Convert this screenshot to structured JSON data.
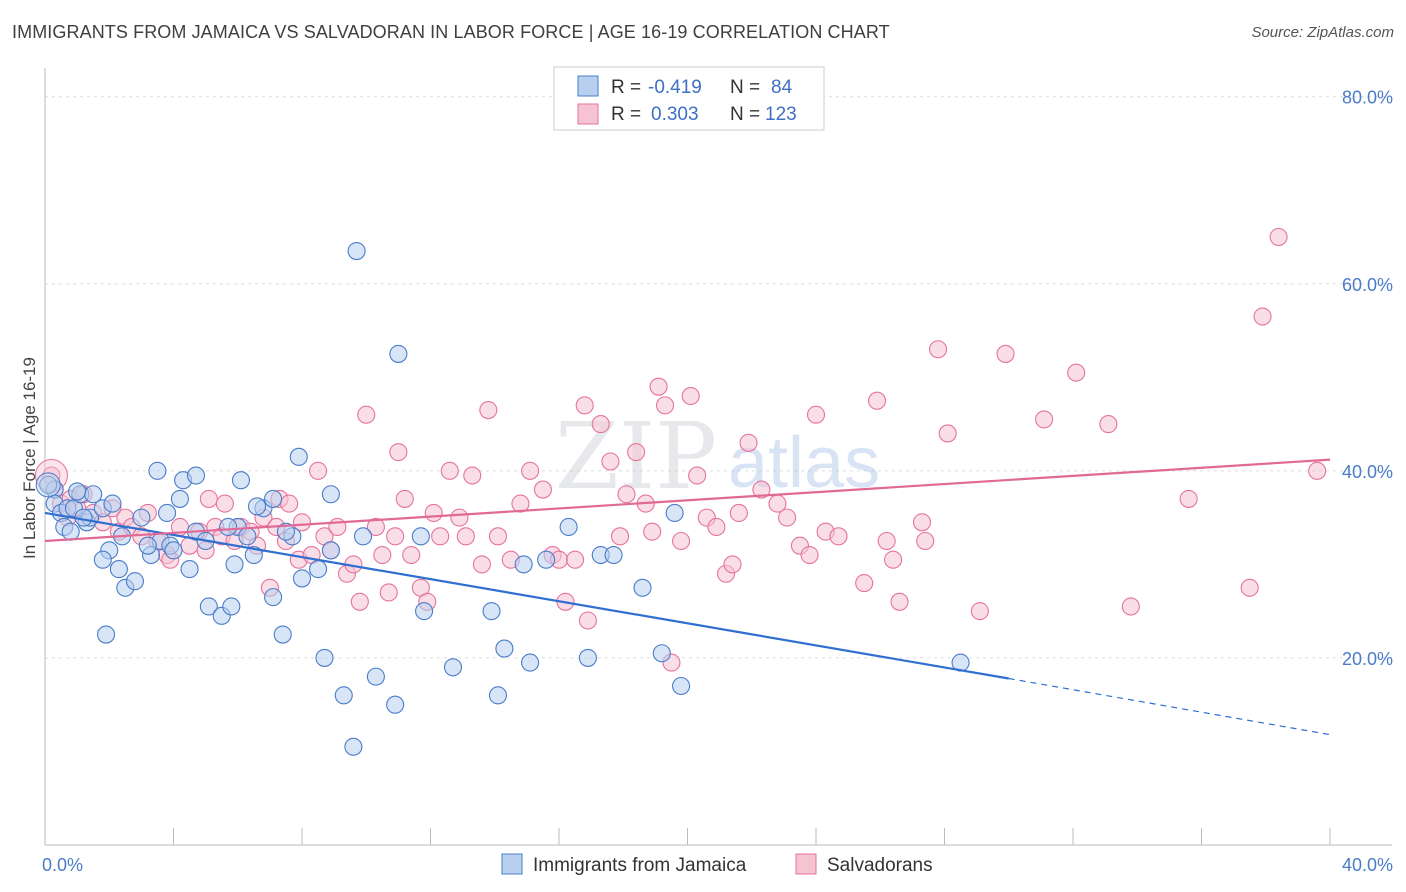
{
  "title": "IMMIGRANTS FROM JAMAICA VS SALVADORAN IN LABOR FORCE | AGE 16-19 CORRELATION CHART",
  "source": "Source: ZipAtlas.com",
  "watermark": {
    "zip": "ZIP",
    "atlas": "atlas"
  },
  "colors": {
    "blue": "#4a7cc9",
    "blue_fill": "#b8d0f0",
    "blue_line": "#2f6fd0",
    "pink": "#e6739c",
    "pink_fill": "#f6c3d3",
    "pink_line": "#e06a95"
  },
  "legend": {
    "r_label": "R =",
    "n_label": "N =",
    "rows": [
      {
        "r": "-0.419",
        "n": "84"
      },
      {
        "r": "0.303",
        "n": "123"
      }
    ]
  },
  "chart_data": {
    "type": "scatter",
    "ylabel": "In Labor Force | Age 16-19",
    "xlim": [
      0,
      40
    ],
    "ylim": [
      0,
      82
    ],
    "x_tick_labels": [
      "0.0%",
      "40.0%"
    ],
    "y_ticks": [
      20,
      40,
      60,
      80
    ],
    "y_tick_labels": [
      "20.0%",
      "40.0%",
      "60.0%",
      "80.0%"
    ],
    "grid": true,
    "legend_position": "bottom",
    "series": [
      {
        "name": "Immigrants from Jamaica",
        "trend": {
          "x": [
            0,
            30,
            40
          ],
          "y": [
            35.5,
            17.8,
            11.8
          ]
        },
        "points": [
          [
            0.3,
            38
          ],
          [
            0.3,
            36.5
          ],
          [
            0.5,
            35.5
          ],
          [
            0.6,
            34
          ],
          [
            0.7,
            36
          ],
          [
            0.9,
            36
          ],
          [
            1.1,
            37.5
          ],
          [
            1.3,
            34.5
          ],
          [
            1.4,
            35
          ],
          [
            1.5,
            37.5
          ],
          [
            1.8,
            36
          ],
          [
            2.1,
            36.5
          ],
          [
            2,
            31.5
          ],
          [
            2.3,
            29.5
          ],
          [
            1.9,
            22.5
          ],
          [
            2.5,
            27.5
          ],
          [
            2.8,
            28.2
          ],
          [
            3,
            35
          ],
          [
            3.3,
            31
          ],
          [
            3.5,
            40
          ],
          [
            3.6,
            32.5
          ],
          [
            3.9,
            32
          ],
          [
            4,
            31.5
          ],
          [
            4.2,
            37
          ],
          [
            4.3,
            39
          ],
          [
            4.5,
            29.5
          ],
          [
            3.8,
            35.5
          ],
          [
            4.7,
            33.5
          ],
          [
            4.7,
            39.5
          ],
          [
            5,
            32.5
          ],
          [
            5.1,
            25.5
          ],
          [
            5.5,
            24.5
          ],
          [
            5.8,
            25.5
          ],
          [
            5.9,
            30
          ],
          [
            6,
            34
          ],
          [
            6.1,
            39
          ],
          [
            6.3,
            33
          ],
          [
            6.5,
            31
          ],
          [
            6.8,
            36
          ],
          [
            7.1,
            37
          ],
          [
            7.1,
            26.5
          ],
          [
            7.4,
            22.5
          ],
          [
            7.7,
            33
          ],
          [
            7.5,
            33.5
          ],
          [
            7.9,
            41.5
          ],
          [
            8,
            28.5
          ],
          [
            8.5,
            29.5
          ],
          [
            8.7,
            20
          ],
          [
            8.9,
            31.5
          ],
          [
            8.9,
            37.5
          ],
          [
            9.3,
            16
          ],
          [
            9.6,
            10.5
          ],
          [
            9.7,
            63.5
          ],
          [
            10.3,
            18
          ],
          [
            10.9,
            15
          ],
          [
            11,
            52.5
          ],
          [
            11.8,
            25
          ],
          [
            12.7,
            19
          ],
          [
            13.9,
            25
          ],
          [
            14.1,
            16
          ],
          [
            14.3,
            21
          ],
          [
            14.9,
            30
          ],
          [
            15.1,
            19.5
          ],
          [
            15.6,
            30.5
          ],
          [
            16.3,
            34
          ],
          [
            16.9,
            20
          ],
          [
            17.3,
            31
          ],
          [
            18.6,
            27.5
          ],
          [
            19.2,
            20.5
          ],
          [
            19.6,
            35.5
          ],
          [
            19.8,
            17
          ],
          [
            28.5,
            19.5
          ],
          [
            17.7,
            31
          ],
          [
            11.7,
            33
          ],
          [
            9.9,
            33
          ],
          [
            2.4,
            33
          ],
          [
            3.2,
            32
          ],
          [
            1.2,
            35
          ],
          [
            5.7,
            34
          ],
          [
            6.6,
            36.2
          ],
          [
            1.8,
            30.5
          ],
          [
            0.8,
            33.5
          ],
          [
            1.0,
            37.8
          ],
          [
            0.1,
            38.5
          ]
        ]
      },
      {
        "name": "Salvadorans",
        "trend": {
          "x": [
            0,
            40
          ],
          "y": [
            32.5,
            41.2
          ]
        },
        "points": [
          [
            0.2,
            39.5
          ],
          [
            0.3,
            38
          ],
          [
            0.5,
            36.5
          ],
          [
            0.7,
            35
          ],
          [
            0.8,
            37
          ],
          [
            1.0,
            36
          ],
          [
            1.2,
            37.5
          ],
          [
            1.5,
            35.5
          ],
          [
            1.8,
            34.5
          ],
          [
            2.1,
            36
          ],
          [
            2.3,
            33.5
          ],
          [
            2.5,
            35
          ],
          [
            2.7,
            34
          ],
          [
            3.0,
            33
          ],
          [
            3.2,
            35.5
          ],
          [
            3.5,
            32.5
          ],
          [
            3.8,
            31
          ],
          [
            3.9,
            30.5
          ],
          [
            4.2,
            34
          ],
          [
            4.5,
            32
          ],
          [
            4.8,
            33.5
          ],
          [
            5,
            31.5
          ],
          [
            5.1,
            37
          ],
          [
            5.3,
            34
          ],
          [
            5.5,
            33
          ],
          [
            5.6,
            36.5
          ],
          [
            5.9,
            32.5
          ],
          [
            6.1,
            34
          ],
          [
            6.4,
            33.5
          ],
          [
            6.6,
            32
          ],
          [
            6.8,
            35
          ],
          [
            7.0,
            27.5
          ],
          [
            7.2,
            34
          ],
          [
            7.3,
            37
          ],
          [
            7.5,
            32.5
          ],
          [
            7.6,
            36.5
          ],
          [
            7.9,
            30.5
          ],
          [
            8.0,
            34.5
          ],
          [
            8.3,
            31
          ],
          [
            8.5,
            40
          ],
          [
            8.7,
            33
          ],
          [
            8.9,
            31.5
          ],
          [
            9.1,
            34
          ],
          [
            9.4,
            29
          ],
          [
            9.6,
            30
          ],
          [
            9.8,
            26
          ],
          [
            10.0,
            46
          ],
          [
            10.3,
            34
          ],
          [
            10.5,
            31
          ],
          [
            10.7,
            27
          ],
          [
            10.9,
            33
          ],
          [
            11.0,
            42
          ],
          [
            11.2,
            37
          ],
          [
            11.4,
            31
          ],
          [
            11.7,
            27.5
          ],
          [
            11.9,
            26
          ],
          [
            12.1,
            35.5
          ],
          [
            12.3,
            33
          ],
          [
            12.6,
            40
          ],
          [
            12.9,
            35
          ],
          [
            13.1,
            33
          ],
          [
            13.3,
            39.5
          ],
          [
            13.6,
            30
          ],
          [
            13.8,
            46.5
          ],
          [
            14.1,
            33
          ],
          [
            14.5,
            30.5
          ],
          [
            14.8,
            36.5
          ],
          [
            15.1,
            40
          ],
          [
            15.5,
            38
          ],
          [
            15.8,
            31
          ],
          [
            16.0,
            30.5
          ],
          [
            16.2,
            26
          ],
          [
            16.5,
            30.5
          ],
          [
            16.8,
            47
          ],
          [
            16.9,
            24
          ],
          [
            17.3,
            45
          ],
          [
            17.6,
            41
          ],
          [
            17.9,
            33
          ],
          [
            18.1,
            37.5
          ],
          [
            18.4,
            42
          ],
          [
            18.7,
            36.5
          ],
          [
            18.9,
            33.5
          ],
          [
            19.1,
            49
          ],
          [
            19.3,
            47
          ],
          [
            19.5,
            19.5
          ],
          [
            19.8,
            32.5
          ],
          [
            20.1,
            48
          ],
          [
            20.3,
            39.5
          ],
          [
            20.6,
            35
          ],
          [
            20.9,
            34
          ],
          [
            21.2,
            29
          ],
          [
            21.4,
            30
          ],
          [
            21.6,
            35.5
          ],
          [
            21.9,
            43
          ],
          [
            22.3,
            38
          ],
          [
            22.8,
            36.5
          ],
          [
            23.1,
            35
          ],
          [
            23.5,
            32
          ],
          [
            23.8,
            31
          ],
          [
            24.0,
            46
          ],
          [
            24.3,
            33.5
          ],
          [
            24.7,
            33
          ],
          [
            25.5,
            28
          ],
          [
            25.9,
            47.5
          ],
          [
            26.2,
            32.5
          ],
          [
            26.4,
            30.5
          ],
          [
            26.6,
            26
          ],
          [
            27.3,
            34.5
          ],
          [
            27.4,
            32.5
          ],
          [
            27.8,
            53
          ],
          [
            28.1,
            44
          ],
          [
            29.1,
            25
          ],
          [
            29.9,
            52.5
          ],
          [
            31.1,
            45.5
          ],
          [
            32.1,
            50.5
          ],
          [
            33.1,
            45
          ],
          [
            33.8,
            25.5
          ],
          [
            35.6,
            37
          ],
          [
            37.5,
            27.5
          ],
          [
            37.9,
            56.5
          ],
          [
            38.4,
            65
          ],
          [
            39.6,
            40
          ]
        ]
      }
    ]
  }
}
